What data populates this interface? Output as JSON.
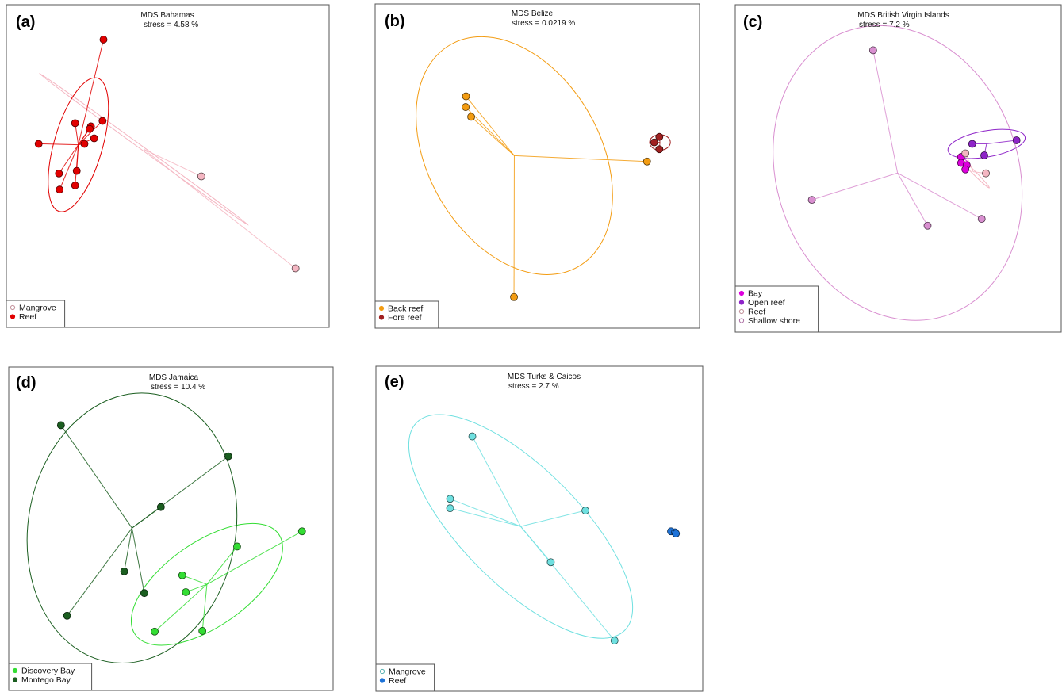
{
  "chart_data": [
    {
      "type": "scatter",
      "panel_label": "(a)",
      "title": "MDS Bahamas",
      "subtitle": "stress = 4.58 %",
      "axes": "none",
      "legend": {
        "position": "bottom-left",
        "entries": [
          "Mangrove",
          "Reef"
        ]
      },
      "series": [
        {
          "name": "Mangrove",
          "color": "#f4b6c2",
          "centroid": [
            0.426,
            0.448
          ],
          "ellipse": {
            "center": [
              0.426,
              0.448
            ],
            "rx": 0.4,
            "ry": 0.005,
            "angle_deg": 36
          },
          "points": [
            [
              0.604,
              0.532
            ],
            [
              0.896,
              0.817
            ]
          ]
        },
        {
          "name": "Reef",
          "color": "#e10000",
          "centroid": [
            0.223,
            0.434
          ],
          "ellipse": {
            "center": [
              0.223,
              0.434
            ],
            "rx": 0.215,
            "ry": 0.075,
            "angle_deg": 106
          },
          "points": [
            [
              0.301,
              0.108
            ],
            [
              0.213,
              0.367
            ],
            [
              0.262,
              0.377
            ],
            [
              0.258,
              0.385
            ],
            [
              0.298,
              0.36
            ],
            [
              0.1,
              0.431
            ],
            [
              0.242,
              0.431
            ],
            [
              0.272,
              0.414
            ],
            [
              0.163,
              0.523
            ],
            [
              0.218,
              0.515
            ],
            [
              0.213,
              0.56
            ],
            [
              0.165,
              0.573
            ]
          ]
        }
      ]
    },
    {
      "type": "scatter",
      "panel_label": "(b)",
      "title": "MDS Belize",
      "subtitle": "stress = 0.0219 %",
      "axes": "none",
      "legend": {
        "position": "bottom-left",
        "entries": [
          "Back reef",
          "Fore reef"
        ]
      },
      "series": [
        {
          "name": "Back reef",
          "color": "#f39c12",
          "centroid": [
            0.429,
            0.468
          ],
          "ellipse": {
            "center": [
              0.429,
              0.468
            ],
            "rx": 0.395,
            "ry": 0.265,
            "angle_deg": 60
          },
          "points": [
            [
              0.28,
              0.285
            ],
            [
              0.279,
              0.318
            ],
            [
              0.296,
              0.348
            ],
            [
              0.838,
              0.486
            ],
            [
              0.428,
              0.904
            ]
          ]
        },
        {
          "name": "Fore reef",
          "color": "#a02020",
          "centroid": [
            0.878,
            0.427
          ],
          "ellipse": {
            "center": [
              0.878,
              0.427
            ],
            "rx": 0.032,
            "ry": 0.024,
            "angle_deg": 0
          },
          "points": [
            [
              0.876,
              0.41
            ],
            [
              0.86,
              0.427
            ],
            [
              0.876,
              0.448
            ]
          ]
        }
      ]
    },
    {
      "type": "scatter",
      "panel_label": "(c)",
      "title": "MDS British Virgin Islands",
      "subtitle": "stress = 7.2 %",
      "axes": "none",
      "legend": {
        "position": "bottom-left",
        "entries": [
          "Bay",
          "Open reef",
          "Reef",
          "Shallow shore"
        ]
      },
      "series": [
        {
          "name": "Bay",
          "color": "#dd00dd",
          "centroid": [
            0.715,
            0.48
          ],
          "points": [
            [
              0.693,
              0.465
            ],
            [
              0.693,
              0.483
            ],
            [
              0.71,
              0.49
            ],
            [
              0.706,
              0.503
            ]
          ]
        },
        {
          "name": "Open reef",
          "color": "#8e24c8",
          "centroid": [
            0.771,
            0.425
          ],
          "ellipse": {
            "center": [
              0.771,
              0.425
            ],
            "rx": 0.12,
            "ry": 0.04,
            "angle_deg": -10
          },
          "points": [
            [
              0.727,
              0.425
            ],
            [
              0.863,
              0.414
            ],
            [
              0.764,
              0.46
            ]
          ]
        },
        {
          "name": "Reef",
          "color": "#f4b6c2",
          "centroid": [
            0.73,
            0.51
          ],
          "ellipse": {
            "center": [
              0.73,
              0.51
            ],
            "rx": 0.07,
            "ry": 0.005,
            "angle_deg": 45
          },
          "points": [
            [
              0.706,
              0.454
            ],
            [
              0.769,
              0.515
            ]
          ]
        },
        {
          "name": "Shallow shore",
          "color": "#d98fd0",
          "centroid": [
            0.498,
            0.514
          ],
          "ellipse": {
            "center": [
              0.498,
              0.514
            ],
            "rx": 0.37,
            "ry": 0.46,
            "angle_deg": -20
          },
          "points": [
            [
              0.423,
              0.139
            ],
            [
              0.235,
              0.596
            ],
            [
              0.59,
              0.675
            ],
            [
              0.756,
              0.654
            ]
          ]
        }
      ]
    },
    {
      "type": "scatter",
      "panel_label": "(d)",
      "title": "MDS Jamaica",
      "subtitle": "stress = 10.4 %",
      "axes": "none",
      "legend": {
        "position": "bottom-left",
        "entries": [
          "Discovery Bay",
          "Montego Bay"
        ]
      },
      "series": [
        {
          "name": "Discovery Bay",
          "color": "#33dd33",
          "centroid": [
            0.611,
            0.672
          ],
          "ellipse": {
            "center": [
              0.611,
              0.672
            ],
            "rx": 0.27,
            "ry": 0.13,
            "angle_deg": -35
          },
          "points": [
            [
              0.904,
              0.508
            ],
            [
              0.704,
              0.555
            ],
            [
              0.535,
              0.644
            ],
            [
              0.546,
              0.696
            ],
            [
              0.45,
              0.818
            ],
            [
              0.597,
              0.816
            ]
          ]
        },
        {
          "name": "Montego Bay",
          "color": "#1b5e20",
          "centroid": [
            0.38,
            0.498
          ],
          "ellipse": {
            "center": [
              0.38,
              0.498
            ],
            "rx": 0.32,
            "ry": 0.42,
            "angle_deg": 10
          },
          "points": [
            [
              0.161,
              0.18
            ],
            [
              0.677,
              0.276
            ],
            [
              0.469,
              0.433
            ],
            [
              0.356,
              0.632
            ],
            [
              0.418,
              0.699
            ],
            [
              0.18,
              0.769
            ]
          ]
        }
      ]
    },
    {
      "type": "scatter",
      "panel_label": "(e)",
      "title": "MDS Turks & Caicos",
      "subtitle": "stress = 2.7 %",
      "axes": "none",
      "legend": {
        "position": "bottom-left",
        "entries": [
          "Mangrove",
          "Reef"
        ]
      },
      "series": [
        {
          "name": "Mangrove",
          "color": "#6fe0e0",
          "centroid": [
            0.443,
            0.493
          ],
          "ellipse": {
            "center": [
              0.443,
              0.493
            ],
            "rx": 0.45,
            "ry": 0.18,
            "angle_deg": 45
          },
          "points": [
            [
              0.295,
              0.216
            ],
            [
              0.227,
              0.408
            ],
            [
              0.227,
              0.437
            ],
            [
              0.641,
              0.444
            ],
            [
              0.535,
              0.603
            ],
            [
              0.73,
              0.844
            ]
          ]
        },
        {
          "name": "Reef",
          "color": "#1e73d8",
          "centroid": [
            0.912,
            0.511
          ],
          "points": [
            [
              0.903,
              0.508
            ],
            [
              0.915,
              0.511
            ],
            [
              0.918,
              0.515
            ]
          ]
        }
      ]
    }
  ]
}
